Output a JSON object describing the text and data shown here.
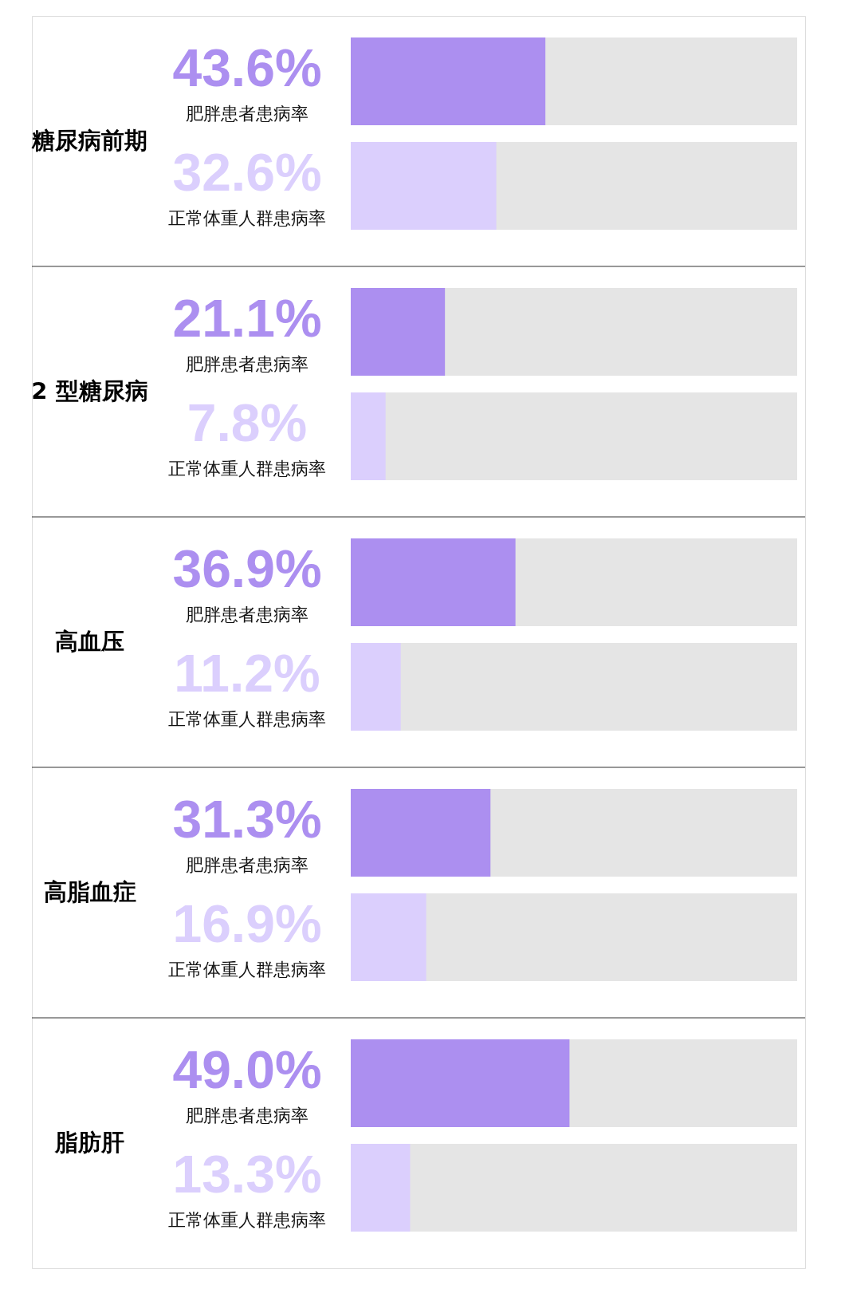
{
  "chart_data": {
    "type": "bar",
    "orientation": "horizontal",
    "categories": [
      "糖尿病前期",
      "2 型糖尿病",
      "高血压",
      "高脂血症",
      "脂肪肝"
    ],
    "series": [
      {
        "name": "肥胖患者患病率",
        "color": "#ac8ff0",
        "values": [
          43.6,
          21.1,
          36.9,
          31.3,
          49.0
        ],
        "value_labels": [
          "43.6%",
          "21.1%",
          "36.9%",
          "31.3%",
          "49.0%"
        ]
      },
      {
        "name": "正常体重人群患病率",
        "color": "#dbcffd",
        "values": [
          32.6,
          7.8,
          11.2,
          16.9,
          13.3
        ],
        "value_labels": [
          "32.6%",
          "7.8%",
          "11.2%",
          "16.9%",
          "13.3%"
        ]
      }
    ],
    "xlim": [
      0,
      100
    ],
    "tick_labels": "y",
    "grid": "y"
  }
}
